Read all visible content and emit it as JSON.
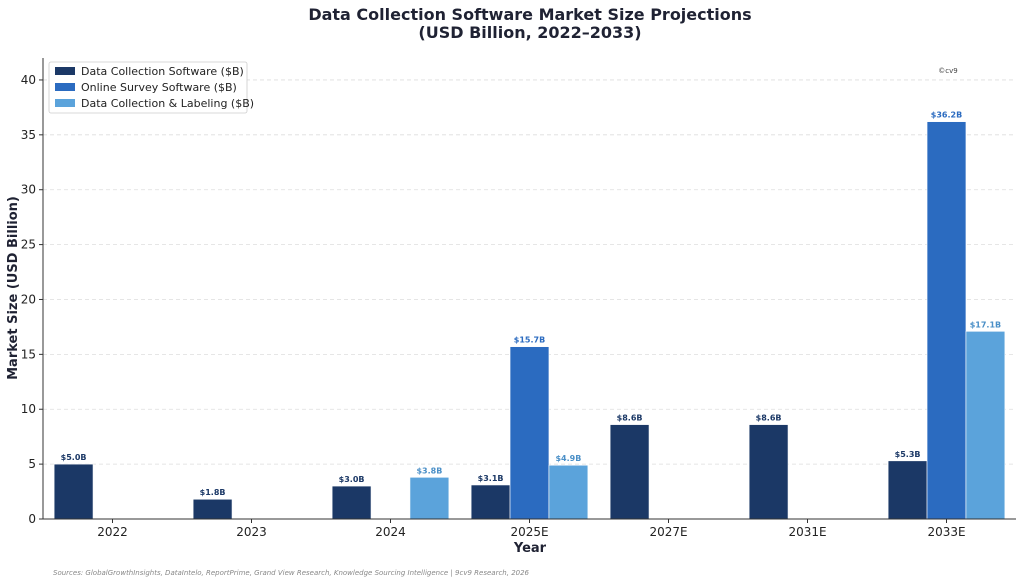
{
  "chart_data": {
    "type": "bar",
    "title_line1": "Data Collection Software Market Size Projections",
    "title_line2": "(USD Billion, 2022–2033)",
    "xlabel": "Year",
    "ylabel": "Market Size (USD Billion)",
    "ylim": [
      0,
      42
    ],
    "yticks": [
      0,
      5,
      10,
      15,
      20,
      25,
      30,
      35,
      40
    ],
    "categories": [
      "2022",
      "2023",
      "2024",
      "2025E",
      "2027E",
      "2031E",
      "2033E"
    ],
    "grid": "y-dashed",
    "legend_position": "top-left",
    "series": [
      {
        "name": "Data Collection Software ($B)",
        "color": "#1b3866",
        "label_color": "#1b3866",
        "values": [
          5.0,
          1.8,
          3.0,
          3.1,
          8.6,
          8.6,
          5.3
        ],
        "labels": [
          "$5.0B",
          "$1.8B",
          "$3.0B",
          "$3.1B",
          "$8.6B",
          "$8.6B",
          "$5.3B"
        ]
      },
      {
        "name": "Online Survey Software ($B)",
        "color": "#2b6bc0",
        "label_color": "#2b6bc0",
        "values": [
          null,
          null,
          null,
          15.7,
          null,
          null,
          36.2
        ],
        "labels": [
          null,
          null,
          null,
          "$15.7B",
          null,
          null,
          "$36.2B"
        ]
      },
      {
        "name": "Data Collection & Labeling ($B)",
        "color": "#5ba3db",
        "label_color": "#4a8fc7",
        "values": [
          null,
          null,
          3.8,
          4.9,
          null,
          null,
          17.1
        ],
        "labels": [
          null,
          null,
          "$3.8B",
          "$4.9B",
          null,
          null,
          "$17.1B"
        ]
      }
    ]
  },
  "source_note": "Sources: GlobalGrowthInsights, DataIntelo, ReportPrime, Grand View Research, Knowledge Sourcing Intelligence | 9cv9 Research, 2026",
  "watermark": "©cv9"
}
